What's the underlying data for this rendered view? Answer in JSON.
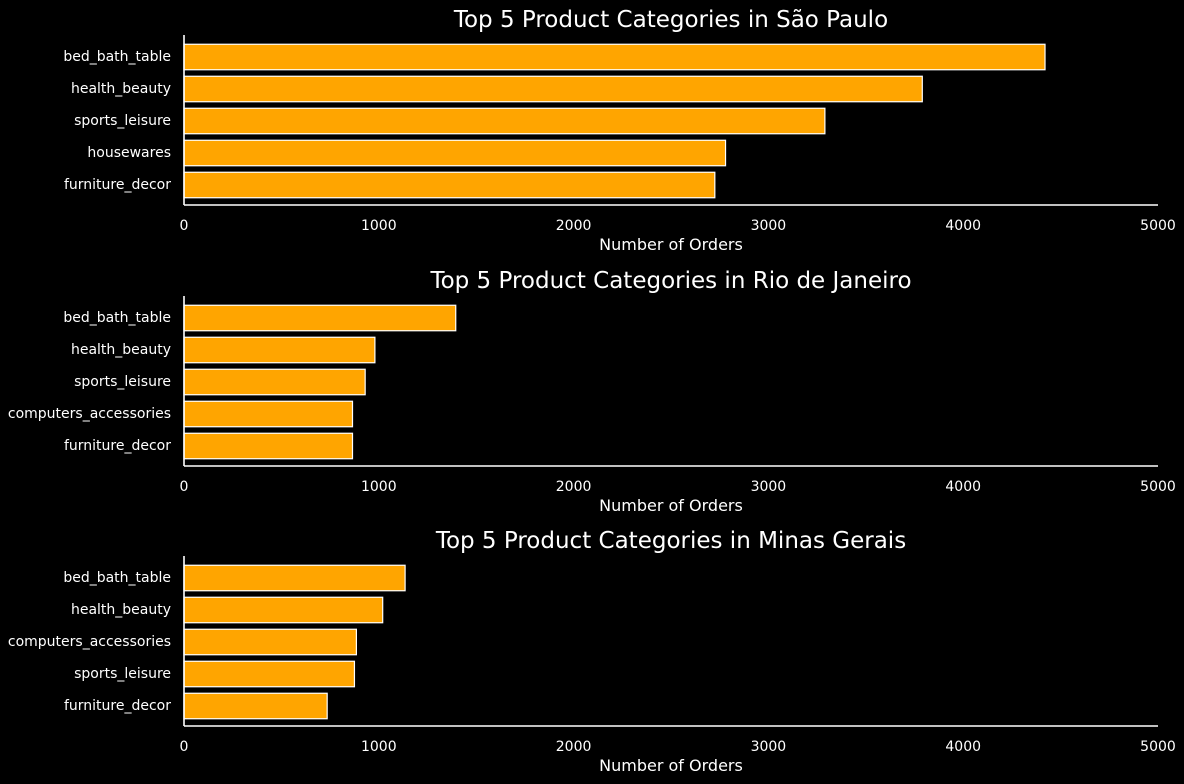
{
  "colors": {
    "background": "#000000",
    "bar_fill": "#ffa500",
    "bar_edge": "#ffffff",
    "text": "#ffffff"
  },
  "chart_data": [
    {
      "type": "bar",
      "orientation": "horizontal",
      "title": "Top 5 Product Categories in São Paulo",
      "xlabel": "Number of Orders",
      "ylabel": "",
      "categories": [
        "bed_bath_table",
        "health_beauty",
        "sports_leisure",
        "housewares",
        "furniture_decor"
      ],
      "values": [
        4420,
        3790,
        3290,
        2780,
        2725
      ],
      "xlim": [
        0,
        5000
      ],
      "xticks": [
        0,
        1000,
        2000,
        3000,
        4000,
        5000
      ],
      "grid": false
    },
    {
      "type": "bar",
      "orientation": "horizontal",
      "title": "Top 5 Product Categories in Rio de Janeiro",
      "xlabel": "Number of Orders",
      "ylabel": "",
      "categories": [
        "bed_bath_table",
        "health_beauty",
        "sports_leisure",
        "computers_accessories",
        "furniture_decor"
      ],
      "values": [
        1395,
        980,
        930,
        865,
        865
      ],
      "xlim": [
        0,
        5000
      ],
      "xticks": [
        0,
        1000,
        2000,
        3000,
        4000,
        5000
      ],
      "grid": false
    },
    {
      "type": "bar",
      "orientation": "horizontal",
      "title": "Top 5 Product Categories in Minas Gerais",
      "xlabel": "Number of Orders",
      "ylabel": "",
      "categories": [
        "bed_bath_table",
        "health_beauty",
        "computers_accessories",
        "sports_leisure",
        "furniture_decor"
      ],
      "values": [
        1135,
        1020,
        885,
        875,
        735
      ],
      "xlim": [
        0,
        5000
      ],
      "xticks": [
        0,
        1000,
        2000,
        3000,
        4000,
        5000
      ],
      "grid": false
    }
  ]
}
